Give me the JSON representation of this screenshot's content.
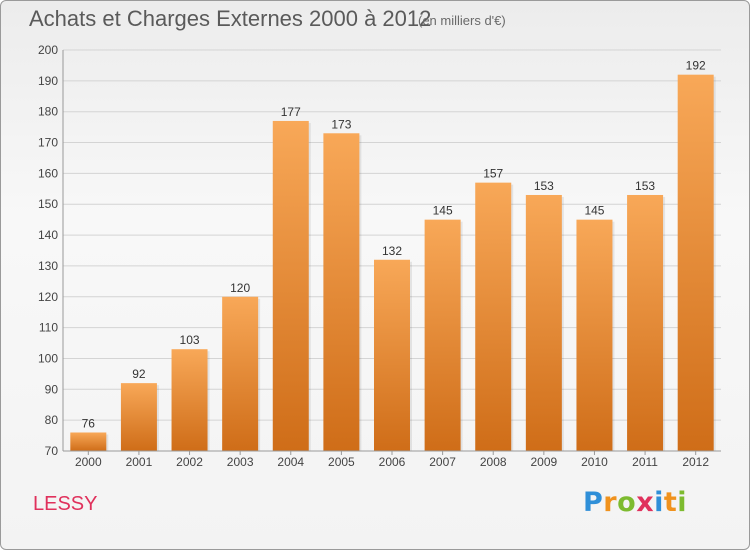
{
  "header": {
    "title": "Achats et Charges Externes 2000 à 2012",
    "subtitle": "(en milliers d'€)"
  },
  "footer": {
    "place": "LESSY",
    "logo_letters": [
      "P",
      "r",
      "o",
      "x",
      "i",
      "t",
      "i"
    ],
    "logo_colors": [
      "#2f8fd8",
      "#f0921d",
      "#7dbb2f",
      "#e0315c",
      "#2f8fd8",
      "#f0921d",
      "#7dbb2f"
    ]
  },
  "colors": {
    "bar_top": "#f8a858",
    "bar_bottom": "#cf6d18",
    "title": "#5a5a5a",
    "place": "#e0315c"
  },
  "chart_data": {
    "type": "bar",
    "title": "Achats et Charges Externes 2000 à 2012",
    "subtitle": "(en milliers d'€)",
    "categories": [
      "2000",
      "2001",
      "2002",
      "2003",
      "2004",
      "2005",
      "2006",
      "2007",
      "2008",
      "2009",
      "2010",
      "2011",
      "2012"
    ],
    "values": [
      76,
      92,
      103,
      120,
      177,
      173,
      132,
      145,
      157,
      153,
      145,
      153,
      192
    ],
    "ylim": [
      70,
      200
    ],
    "yticks": [
      70,
      80,
      90,
      100,
      110,
      120,
      130,
      140,
      150,
      160,
      170,
      180,
      190,
      200
    ],
    "grid": true,
    "xlabel": "",
    "ylabel": ""
  }
}
